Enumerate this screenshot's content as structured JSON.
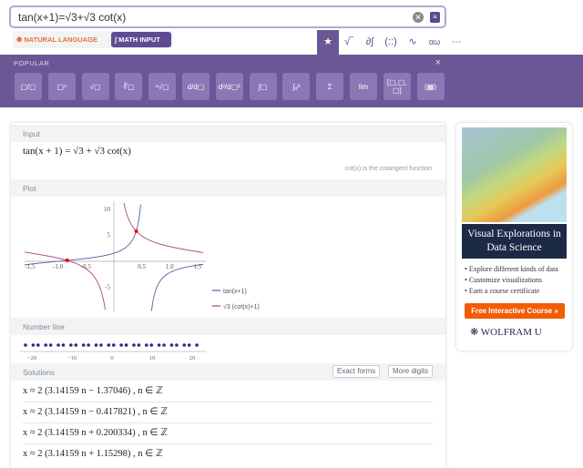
{
  "search": {
    "query": "tan(x+1)=√3+√3 cot(x)"
  },
  "modes": {
    "natural": "NATURAL LANGUAGE",
    "math": "MATH INPUT"
  },
  "tabs": [
    {
      "icon": "star-icon",
      "label": "★"
    },
    {
      "icon": "sqrt-icon",
      "label": "√‾"
    },
    {
      "icon": "calculus-icon",
      "label": "∂∫"
    },
    {
      "icon": "matrix-icon",
      "label": "(::)"
    },
    {
      "icon": "wave-icon",
      "label": "∿"
    },
    {
      "icon": "greek-icon",
      "label": "αω"
    },
    {
      "icon": "more-icon",
      "label": "···"
    }
  ],
  "palette": {
    "title": "POPULAR",
    "close": "×",
    "buttons": [
      "▢/▢",
      "▢ⁿ",
      "√▢",
      "∛▢",
      "ⁿ√▢",
      "d/d▢",
      "d²/d▢²",
      "∫▢",
      "∫ₐᵇ",
      "Σ",
      "lim",
      "[▢,▢,▢]",
      "(▦)"
    ]
  },
  "pods": {
    "input": {
      "title": "Input",
      "expr": "tan(x + 1) = √3 + √3 cot(x)",
      "note": "cot(x) is the cotangent function"
    },
    "plot": {
      "title": "Plot"
    },
    "numberline": {
      "title": "Number line"
    },
    "solutions": {
      "title": "Solutions",
      "exact": "Exact forms",
      "more": "More digits",
      "items": [
        "x ≈ 2 (3.14159 n − 1.37046) ,    n ∈ ℤ",
        "x ≈ 2 (3.14159 n − 0.417821) ,    n ∈ ℤ",
        "x ≈ 2 (3.14159 n + 0.200334) ,    n ∈ ℤ",
        "x ≈ 2 (3.14159 n + 1.15298) ,    n ∈ ℤ"
      ]
    }
  },
  "chart_data": [
    {
      "type": "line",
      "xlim": [
        -1.6,
        1.6
      ],
      "ylim": [
        -9.5,
        11
      ],
      "xticks": [
        "-1.5",
        "-1.0",
        "-0.5",
        "0.5",
        "1.0",
        "1.5"
      ],
      "yticks": [
        "10",
        "5",
        "-5"
      ],
      "legend_placement": "bottom-right",
      "series": [
        {
          "name": "tan(x+1)",
          "color": "#5b5ba8"
        },
        {
          "name": "√3 (cot(x)+1)",
          "color": "#a64a6a"
        }
      ],
      "intersections": [
        [
          -0.835642,
          0.2
        ],
        [
          0.400668,
          5.82
        ]
      ]
    },
    {
      "type": "scatter",
      "xlim": [
        -22,
        23
      ],
      "xticks": [
        "-20",
        "-10",
        "0",
        "10",
        "20"
      ],
      "color": "#2a2a8c",
      "solutions": [
        -2.74092,
        -0.835642,
        0.400668,
        2.30596
      ],
      "period": 6.28318
    }
  ],
  "ad": {
    "title": "Visual Explorations in Data Science",
    "bullets": [
      "Explore different kinds of data",
      "Customize visualizations",
      "Earn a course certificate"
    ],
    "cta": "Free Interactive Course »",
    "brand": "WOLFRAM U"
  }
}
